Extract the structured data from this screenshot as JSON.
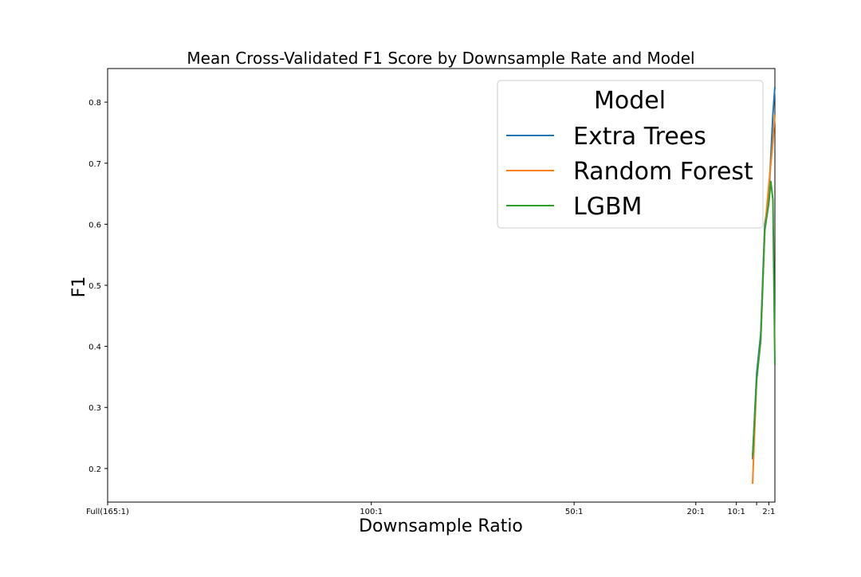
{
  "chart_data": {
    "type": "line",
    "title": "Mean Cross-Validated F1 Score by Downsample Rate and Model",
    "xlabel": "Downsample Ratio",
    "ylabel": "F1",
    "xlim": [
      165,
      0.5
    ],
    "ylim": [
      0.145,
      0.855
    ],
    "x_reversed": true,
    "x_ticks": [
      {
        "value": 165,
        "label": "Full(165:1)"
      },
      {
        "value": 100,
        "label": "100:1"
      },
      {
        "value": 50,
        "label": "50:1"
      },
      {
        "value": 20,
        "label": "20:1"
      },
      {
        "value": 10,
        "label": "10:1"
      },
      {
        "value": 5,
        "label": ""
      },
      {
        "value": 2,
        "label": "2:1"
      }
    ],
    "y_ticks": [
      {
        "value": 0.2,
        "label": "0.2"
      },
      {
        "value": 0.3,
        "label": "0.3"
      },
      {
        "value": 0.4,
        "label": "0.4"
      },
      {
        "value": 0.5,
        "label": "0.5"
      },
      {
        "value": 0.6,
        "label": "0.6"
      },
      {
        "value": 0.7,
        "label": "0.7"
      },
      {
        "value": 0.8,
        "label": "0.8"
      }
    ],
    "grid": false,
    "legend": {
      "title": "Model",
      "position": "top-right"
    },
    "series": [
      {
        "name": "Extra Trees",
        "color": "#1f77b4",
        "points": [
          [
            6,
            0.215
          ],
          [
            5,
            0.355
          ],
          [
            4,
            0.42
          ],
          [
            3,
            0.6
          ],
          [
            2,
            0.645
          ],
          [
            1,
            0.78
          ],
          [
            0.5,
            0.825
          ]
        ]
      },
      {
        "name": "Random Forest",
        "color": "#ff7f0e",
        "points": [
          [
            6,
            0.175
          ],
          [
            5,
            0.345
          ],
          [
            4,
            0.41
          ],
          [
            3,
            0.59
          ],
          [
            2,
            0.665
          ],
          [
            1,
            0.735
          ],
          [
            0.5,
            0.78
          ]
        ]
      },
      {
        "name": "LGBM",
        "color": "#2ca02c",
        "points": [
          [
            6,
            0.22
          ],
          [
            5,
            0.345
          ],
          [
            4,
            0.41
          ],
          [
            3,
            0.59
          ],
          [
            2,
            0.635
          ],
          [
            1.5,
            0.67
          ],
          [
            1,
            0.64
          ],
          [
            0.5,
            0.37
          ]
        ]
      }
    ]
  }
}
